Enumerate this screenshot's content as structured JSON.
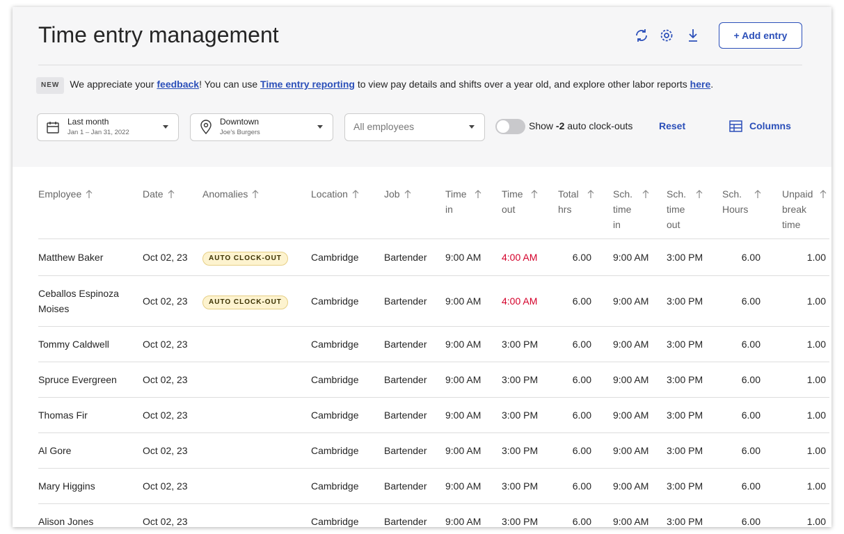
{
  "header": {
    "title": "Time entry management",
    "add_entry": "+ Add entry"
  },
  "banner": {
    "badge": "NEW",
    "segments": [
      {
        "text": "We appreciate your "
      },
      {
        "text": "feedback",
        "link": true
      },
      {
        "text": "! You can use "
      },
      {
        "text": "Time entry reporting",
        "link": true
      },
      {
        "text": " to view pay details and shifts over a year old, and explore other labor reports "
      },
      {
        "text": "here",
        "link": true
      },
      {
        "text": "."
      }
    ]
  },
  "filters": {
    "date": {
      "label": "Last month",
      "sub": "Jan 1 – Jan 31, 2022"
    },
    "location": {
      "label": "Downtown",
      "sub": "Joe's Burgers"
    },
    "employees": "All employees",
    "toggle": {
      "before": "Show ",
      "count": "-2",
      "after": " auto clock-outs"
    },
    "reset": "Reset",
    "columns": "Columns"
  },
  "table": {
    "columns": [
      "Employee",
      "Date",
      "Anomalies",
      "Location",
      "Job",
      "Time in",
      "Time out",
      "Total hrs",
      "Sch. time in",
      "Sch. time out",
      "Sch. Hours",
      "Unpaid break time"
    ],
    "rows": [
      [
        "Matthew Baker",
        "Oct 02, 23",
        "AUTO CLOCK-OUT",
        "Cambridge",
        "Bartender",
        "9:00 AM",
        "4:00 AM",
        "6.00",
        "9:00 AM",
        "3:00 PM",
        "6.00",
        "1.00"
      ],
      [
        "Ceballos Espinoza Moises",
        "Oct 02, 23",
        "AUTO CLOCK-OUT",
        "Cambridge",
        "Bartender",
        "9:00 AM",
        "4:00 AM",
        "6.00",
        "9:00 AM",
        "3:00 PM",
        "6.00",
        "1.00"
      ],
      [
        "Tommy Caldwell",
        "Oct 02, 23",
        null,
        "Cambridge",
        "Bartender",
        "9:00 AM",
        "3:00 PM",
        "6.00",
        "9:00 AM",
        "3:00 PM",
        "6.00",
        "1.00"
      ],
      [
        "Spruce Evergreen",
        "Oct 02, 23",
        null,
        "Cambridge",
        "Bartender",
        "9:00 AM",
        "3:00 PM",
        "6.00",
        "9:00 AM",
        "3:00 PM",
        "6.00",
        "1.00"
      ],
      [
        "Thomas Fir",
        "Oct 02, 23",
        null,
        "Cambridge",
        "Bartender",
        "9:00 AM",
        "3:00 PM",
        "6.00",
        "9:00 AM",
        "3:00 PM",
        "6.00",
        "1.00"
      ],
      [
        "Al Gore",
        "Oct 02, 23",
        null,
        "Cambridge",
        "Bartender",
        "9:00 AM",
        "3:00 PM",
        "6.00",
        "9:00 AM",
        "3:00 PM",
        "6.00",
        "1.00"
      ],
      [
        "Mary Higgins",
        "Oct 02, 23",
        null,
        "Cambridge",
        "Bartender",
        "9:00 AM",
        "3:00 PM",
        "6.00",
        "9:00 AM",
        "3:00 PM",
        "6.00",
        "1.00"
      ],
      [
        "Alison Jones",
        "Oct 02, 23",
        null,
        "Cambridge",
        "Bartender",
        "9:00 AM",
        "3:00 PM",
        "6.00",
        "9:00 AM",
        "3:00 PM",
        "6.00",
        "1.00"
      ]
    ]
  }
}
